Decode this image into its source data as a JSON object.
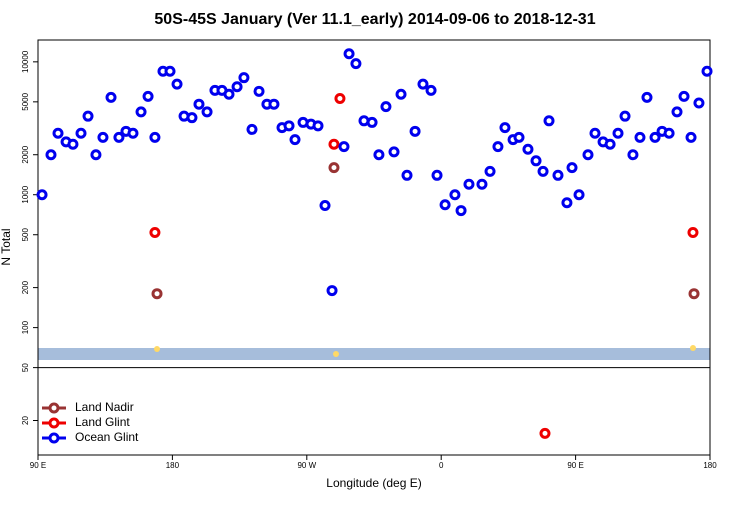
{
  "chart_data": {
    "type": "scatter",
    "title": "50S-45S January (Ver 11.1_early)   2014-09-06 to 2018-12-31",
    "x_label": "Longitude (deg E)",
    "y_label": "N Total",
    "xlim": [
      90,
      540
    ],
    "xticks": [
      {
        "value": 90,
        "label": "90 E"
      },
      {
        "value": 180,
        "label": "180"
      },
      {
        "value": 270,
        "label": "90 W"
      },
      {
        "value": 360,
        "label": "0"
      },
      {
        "value": 450,
        "label": "90 E"
      },
      {
        "value": 540,
        "label": "180"
      }
    ],
    "ylim": [
      11,
      14600
    ],
    "yscale": "log",
    "yticks": [
      20,
      50,
      100,
      200,
      500,
      1000,
      2000,
      5000,
      10000
    ],
    "legend": "lower left",
    "series": [
      {
        "name": "Land Nadir",
        "color": "#993333",
        "x": [
          169.7,
          288.2,
          529.3
        ],
        "values": [
          180,
          1600,
          180
        ]
      },
      {
        "name": "Land Glint",
        "color": "#ee0000",
        "x": [
          168.3,
          292.2,
          288.2,
          429.5,
          528.6
        ],
        "values": [
          520,
          5300,
          2400,
          16,
          520
        ]
      },
      {
        "name": "Ocean Glint",
        "color": "#0000ee",
        "x": [
          92.7,
          98.7,
          103.4,
          108.8,
          113.4,
          118.8,
          123.5,
          128.8,
          133.5,
          138.9,
          144.2,
          148.9,
          153.6,
          159,
          163.7,
          168.3,
          173.7,
          178.4,
          183.1,
          187.8,
          193.1,
          197.8,
          203.2,
          208.5,
          213.2,
          217.9,
          223.3,
          227.9,
          233.3,
          238,
          243.3,
          248,
          253.4,
          258.1,
          262.1,
          267.5,
          272.8,
          277.5,
          282.2,
          286.9,
          294.9,
          298.3,
          302.9,
          308.3,
          313.7,
          318.3,
          323,
          328.4,
          333.1,
          337.1,
          342.5,
          347.8,
          353.2,
          357.2,
          362.6,
          369.2,
          373.3,
          378.6,
          387.3,
          392.7,
          398,
          402.7,
          408.1,
          412.1,
          418.1,
          423.5,
          428.2,
          432.2,
          438.2,
          444.2,
          447.6,
          452.3,
          458.3,
          463,
          468.4,
          473.1,
          478.4,
          483.1,
          488.4,
          493.1,
          497.8,
          503.2,
          507.9,
          512.6,
          517.9,
          522.6,
          527.3,
          532.6,
          538
        ],
        "values": [
          1000,
          2000,
          2900,
          2500,
          2400,
          2900,
          3900,
          2000,
          2700,
          5400,
          2700,
          3000,
          2900,
          4200,
          5500,
          2700,
          8500,
          8500,
          6800,
          3900,
          3800,
          4800,
          4200,
          6100,
          6100,
          5700,
          6500,
          7600,
          3100,
          6000,
          4800,
          4800,
          3200,
          3300,
          2600,
          3500,
          3400,
          3300,
          830,
          190,
          2300,
          11500,
          9700,
          3600,
          3500,
          2000,
          4600,
          2100,
          5700,
          1400,
          3000,
          6800,
          6100,
          1400,
          840,
          1000,
          760,
          1200,
          1200,
          1500,
          2300,
          3200,
          2600,
          2700,
          2200,
          1800,
          1500,
          3600,
          1400,
          870,
          1600,
          1000,
          2000,
          2900,
          2500,
          2400,
          2900,
          3900,
          2000,
          2700,
          5400,
          2700,
          3000,
          2900,
          4200,
          5500,
          2700,
          4900,
          8500
        ]
      }
    ]
  }
}
